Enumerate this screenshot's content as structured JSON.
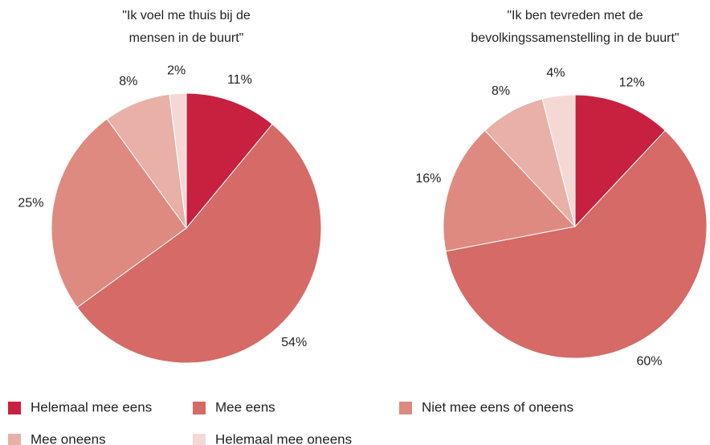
{
  "chart_data": [
    {
      "type": "pie",
      "title": [
        "\"Ik voel me thuis bij de",
        "mensen in de buurt\""
      ],
      "categories": [
        "Helemaal mee eens",
        "Mee eens",
        "Niet mee eens of oneens",
        "Mee oneens",
        "Helemaal mee oneens"
      ],
      "values": [
        11,
        54,
        25,
        8,
        2
      ],
      "value_labels": [
        "11%",
        "54%",
        "25%",
        "8%",
        "2%"
      ],
      "colors": [
        "#c8203f",
        "#d56a66",
        "#de8a80",
        "#e8b0a6",
        "#f5d8d4"
      ]
    },
    {
      "type": "pie",
      "title": [
        "\"Ik ben tevreden met de",
        "bevolkingssamenstelling in de buurt\""
      ],
      "categories": [
        "Helemaal mee eens",
        "Mee eens",
        "Niet mee eens of oneens",
        "Mee oneens",
        "Helemaal mee oneens"
      ],
      "values": [
        12,
        60,
        16,
        8,
        4
      ],
      "value_labels": [
        "12%",
        "60%",
        "16%",
        "8%",
        "4%"
      ],
      "colors": [
        "#c8203f",
        "#d56a66",
        "#de8a80",
        "#e8b0a6",
        "#f5d8d4"
      ]
    }
  ]
}
